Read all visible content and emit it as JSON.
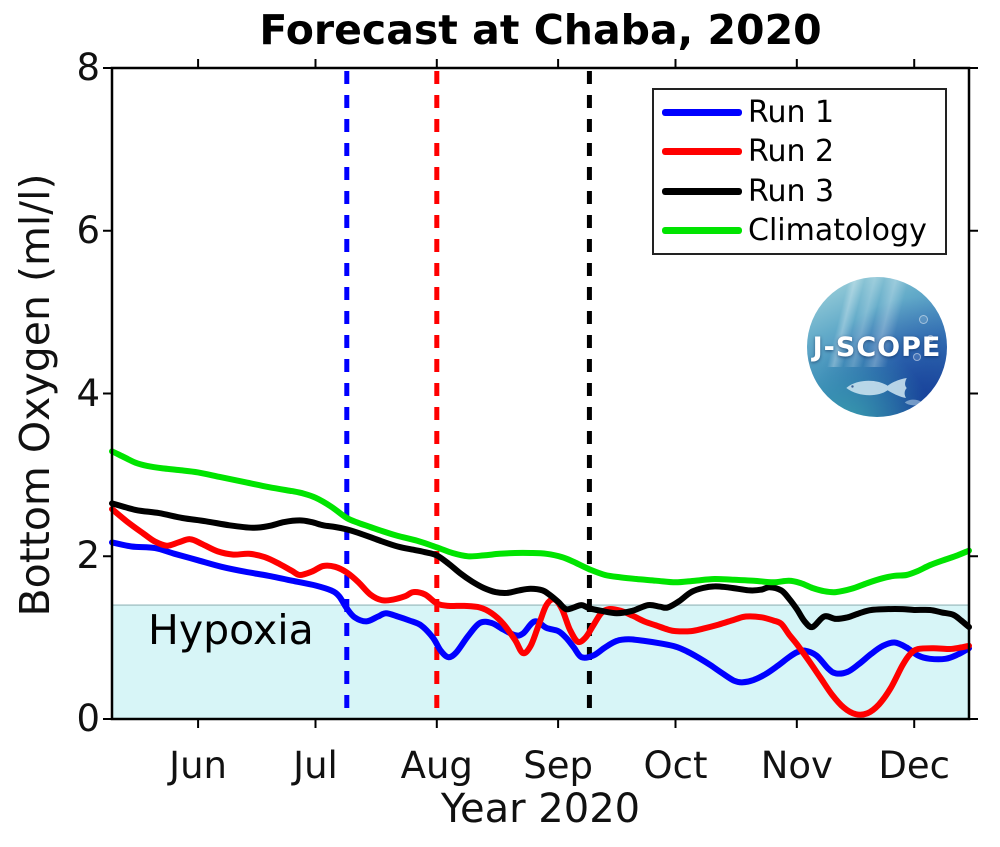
{
  "title": "Forecast at Chaba, 2020",
  "axes": {
    "xlabel": "Year 2020",
    "ylabel": "Bottom Oxygen (ml/l)"
  },
  "legend": {
    "items": [
      {
        "label": "Run 1",
        "color": "#0000ff"
      },
      {
        "label": "Run 2",
        "color": "#ff0000"
      },
      {
        "label": "Run 3",
        "color": "#000000"
      },
      {
        "label": "Climatology",
        "color": "#00e400"
      }
    ]
  },
  "hypoxia_label": "Hypoxia",
  "logo": {
    "text": "J-SCOPE"
  },
  "chart_data": {
    "type": "line",
    "title": "Forecast at Chaba, 2020",
    "xlabel": "Year 2020",
    "ylabel": "Bottom Oxygen (ml/l)",
    "ylim": [
      0,
      8
    ],
    "y_ticks": [
      0,
      2,
      4,
      6,
      8
    ],
    "grid": false,
    "legend_position": "top-right-inside",
    "x_unit": "days since 2020-05-01",
    "x_range": [
      9,
      228
    ],
    "x_ticks": [
      {
        "label": "Jun",
        "day": 31
      },
      {
        "label": "Jul",
        "day": 61
      },
      {
        "label": "Aug",
        "day": 92
      },
      {
        "label": "Sep",
        "day": 123
      },
      {
        "label": "Oct",
        "day": 153
      },
      {
        "label": "Nov",
        "day": 184
      },
      {
        "label": "Dec",
        "day": 214
      }
    ],
    "hypoxia": {
      "label": "Hypoxia",
      "threshold_ml_l": 1.4,
      "fill": "#d7f5f7",
      "edge_color": "#a9c6c9"
    },
    "vlines": [
      {
        "date": "Jul 9",
        "day": 69,
        "color": "#0000ff",
        "style": "dashed"
      },
      {
        "date": "Aug 1",
        "day": 92,
        "color": "#ff0000",
        "style": "dashed"
      },
      {
        "date": "Sep 8",
        "day": 131,
        "color": "#000000",
        "style": "dashed"
      }
    ],
    "series": [
      {
        "name": "Run 1",
        "color": "#0000ff",
        "points": [
          [
            9,
            2.17
          ],
          [
            14,
            2.12
          ],
          [
            20,
            2.1
          ],
          [
            25,
            2.03
          ],
          [
            31,
            1.95
          ],
          [
            37,
            1.87
          ],
          [
            43,
            1.81
          ],
          [
            49,
            1.76
          ],
          [
            55,
            1.7
          ],
          [
            61,
            1.64
          ],
          [
            65,
            1.58
          ],
          [
            67,
            1.51
          ],
          [
            69,
            1.36
          ],
          [
            71,
            1.25
          ],
          [
            74,
            1.2
          ],
          [
            77,
            1.26
          ],
          [
            79,
            1.3
          ],
          [
            82,
            1.26
          ],
          [
            85,
            1.21
          ],
          [
            88,
            1.15
          ],
          [
            91,
            1.0
          ],
          [
            93,
            0.84
          ],
          [
            95,
            0.76
          ],
          [
            97,
            0.82
          ],
          [
            100,
            1.02
          ],
          [
            103,
            1.18
          ],
          [
            106,
            1.18
          ],
          [
            109,
            1.1
          ],
          [
            112,
            1.03
          ],
          [
            114,
            1.05
          ],
          [
            117,
            1.2
          ],
          [
            120,
            1.12
          ],
          [
            123,
            1.08
          ],
          [
            125,
            1.0
          ],
          [
            127,
            0.88
          ],
          [
            129,
            0.76
          ],
          [
            132,
            0.78
          ],
          [
            135,
            0.88
          ],
          [
            138,
            0.96
          ],
          [
            141,
            0.98
          ],
          [
            145,
            0.96
          ],
          [
            149,
            0.93
          ],
          [
            153,
            0.89
          ],
          [
            156,
            0.83
          ],
          [
            159,
            0.75
          ],
          [
            162,
            0.66
          ],
          [
            165,
            0.56
          ],
          [
            168,
            0.47
          ],
          [
            170,
            0.45
          ],
          [
            173,
            0.48
          ],
          [
            176,
            0.55
          ],
          [
            179,
            0.65
          ],
          [
            182,
            0.76
          ],
          [
            184,
            0.82
          ],
          [
            186,
            0.84
          ],
          [
            189,
            0.78
          ],
          [
            192,
            0.62
          ],
          [
            194,
            0.56
          ],
          [
            197,
            0.58
          ],
          [
            200,
            0.68
          ],
          [
            203,
            0.8
          ],
          [
            206,
            0.9
          ],
          [
            209,
            0.94
          ],
          [
            212,
            0.88
          ],
          [
            215,
            0.78
          ],
          [
            218,
            0.74
          ],
          [
            222,
            0.74
          ],
          [
            225,
            0.79
          ],
          [
            228,
            0.87
          ]
        ]
      },
      {
        "name": "Run 2",
        "color": "#ff0000",
        "points": [
          [
            9,
            2.58
          ],
          [
            13,
            2.42
          ],
          [
            17,
            2.28
          ],
          [
            20,
            2.18
          ],
          [
            23,
            2.13
          ],
          [
            26,
            2.17
          ],
          [
            29,
            2.21
          ],
          [
            32,
            2.15
          ],
          [
            36,
            2.06
          ],
          [
            40,
            2.02
          ],
          [
            44,
            2.03
          ],
          [
            48,
            1.99
          ],
          [
            52,
            1.9
          ],
          [
            55,
            1.82
          ],
          [
            57,
            1.77
          ],
          [
            60,
            1.81
          ],
          [
            63,
            1.88
          ],
          [
            66,
            1.87
          ],
          [
            69,
            1.8
          ],
          [
            72,
            1.68
          ],
          [
            75,
            1.53
          ],
          [
            78,
            1.46
          ],
          [
            81,
            1.47
          ],
          [
            84,
            1.51
          ],
          [
            86,
            1.56
          ],
          [
            89,
            1.53
          ],
          [
            92,
            1.42
          ],
          [
            95,
            1.39
          ],
          [
            99,
            1.39
          ],
          [
            103,
            1.37
          ],
          [
            106,
            1.3
          ],
          [
            109,
            1.17
          ],
          [
            112,
            0.97
          ],
          [
            114,
            0.81
          ],
          [
            116,
            0.9
          ],
          [
            118,
            1.15
          ],
          [
            120,
            1.4
          ],
          [
            122,
            1.47
          ],
          [
            124,
            1.35
          ],
          [
            126,
            1.1
          ],
          [
            128,
            0.95
          ],
          [
            130,
            1.0
          ],
          [
            132,
            1.15
          ],
          [
            134,
            1.3
          ],
          [
            136,
            1.35
          ],
          [
            139,
            1.33
          ],
          [
            142,
            1.27
          ],
          [
            145,
            1.2
          ],
          [
            148,
            1.15
          ],
          [
            151,
            1.1
          ],
          [
            153,
            1.08
          ],
          [
            157,
            1.08
          ],
          [
            160,
            1.11
          ],
          [
            164,
            1.16
          ],
          [
            168,
            1.22
          ],
          [
            171,
            1.26
          ],
          [
            175,
            1.25
          ],
          [
            178,
            1.21
          ],
          [
            180,
            1.17
          ],
          [
            182,
            1.04
          ],
          [
            184,
            0.92
          ],
          [
            187,
            0.72
          ],
          [
            190,
            0.51
          ],
          [
            193,
            0.3
          ],
          [
            196,
            0.14
          ],
          [
            199,
            0.06
          ],
          [
            202,
            0.07
          ],
          [
            205,
            0.18
          ],
          [
            208,
            0.38
          ],
          [
            211,
            0.66
          ],
          [
            213,
            0.8
          ],
          [
            215,
            0.86
          ],
          [
            219,
            0.87
          ],
          [
            223,
            0.86
          ],
          [
            226,
            0.88
          ],
          [
            228,
            0.9
          ]
        ]
      },
      {
        "name": "Run 3",
        "color": "#000000",
        "points": [
          [
            9,
            2.65
          ],
          [
            15,
            2.57
          ],
          [
            21,
            2.53
          ],
          [
            27,
            2.47
          ],
          [
            33,
            2.43
          ],
          [
            39,
            2.38
          ],
          [
            45,
            2.35
          ],
          [
            49,
            2.37
          ],
          [
            53,
            2.42
          ],
          [
            57,
            2.44
          ],
          [
            60,
            2.42
          ],
          [
            63,
            2.38
          ],
          [
            66,
            2.36
          ],
          [
            69,
            2.33
          ],
          [
            73,
            2.27
          ],
          [
            77,
            2.2
          ],
          [
            82,
            2.12
          ],
          [
            86,
            2.08
          ],
          [
            89,
            2.05
          ],
          [
            92,
            2.01
          ],
          [
            95,
            1.91
          ],
          [
            98,
            1.79
          ],
          [
            101,
            1.69
          ],
          [
            104,
            1.61
          ],
          [
            107,
            1.56
          ],
          [
            110,
            1.55
          ],
          [
            113,
            1.58
          ],
          [
            116,
            1.6
          ],
          [
            119,
            1.58
          ],
          [
            121,
            1.52
          ],
          [
            123,
            1.44
          ],
          [
            125,
            1.35
          ],
          [
            127,
            1.37
          ],
          [
            129,
            1.4
          ],
          [
            131,
            1.36
          ],
          [
            134,
            1.33
          ],
          [
            138,
            1.3
          ],
          [
            142,
            1.33
          ],
          [
            146,
            1.4
          ],
          [
            149,
            1.38
          ],
          [
            151,
            1.37
          ],
          [
            154,
            1.45
          ],
          [
            157,
            1.56
          ],
          [
            160,
            1.61
          ],
          [
            163,
            1.63
          ],
          [
            166,
            1.62
          ],
          [
            169,
            1.6
          ],
          [
            172,
            1.58
          ],
          [
            175,
            1.59
          ],
          [
            177,
            1.62
          ],
          [
            180,
            1.58
          ],
          [
            182,
            1.48
          ],
          [
            184,
            1.35
          ],
          [
            186,
            1.2
          ],
          [
            188,
            1.13
          ],
          [
            191,
            1.26
          ],
          [
            194,
            1.23
          ],
          [
            197,
            1.25
          ],
          [
            200,
            1.3
          ],
          [
            203,
            1.34
          ],
          [
            207,
            1.35
          ],
          [
            211,
            1.35
          ],
          [
            214,
            1.34
          ],
          [
            218,
            1.34
          ],
          [
            221,
            1.31
          ],
          [
            224,
            1.28
          ],
          [
            226,
            1.21
          ],
          [
            228,
            1.13
          ]
        ]
      },
      {
        "name": "Climatology",
        "color": "#00e400",
        "points": [
          [
            9,
            3.29
          ],
          [
            12,
            3.22
          ],
          [
            15,
            3.15
          ],
          [
            18,
            3.11
          ],
          [
            22,
            3.08
          ],
          [
            26,
            3.06
          ],
          [
            31,
            3.03
          ],
          [
            37,
            2.97
          ],
          [
            43,
            2.91
          ],
          [
            49,
            2.85
          ],
          [
            55,
            2.8
          ],
          [
            58,
            2.77
          ],
          [
            61,
            2.72
          ],
          [
            65,
            2.61
          ],
          [
            69,
            2.47
          ],
          [
            72,
            2.41
          ],
          [
            75,
            2.36
          ],
          [
            78,
            2.31
          ],
          [
            82,
            2.25
          ],
          [
            87,
            2.19
          ],
          [
            92,
            2.11
          ],
          [
            96,
            2.04
          ],
          [
            100,
            2.0
          ],
          [
            104,
            2.01
          ],
          [
            108,
            2.03
          ],
          [
            112,
            2.04
          ],
          [
            116,
            2.04
          ],
          [
            120,
            2.03
          ],
          [
            124,
            1.99
          ],
          [
            127,
            1.93
          ],
          [
            131,
            1.84
          ],
          [
            135,
            1.77
          ],
          [
            139,
            1.74
          ],
          [
            143,
            1.72
          ],
          [
            148,
            1.7
          ],
          [
            153,
            1.68
          ],
          [
            158,
            1.7
          ],
          [
            163,
            1.72
          ],
          [
            168,
            1.71
          ],
          [
            173,
            1.7
          ],
          [
            178,
            1.68
          ],
          [
            182,
            1.7
          ],
          [
            185,
            1.67
          ],
          [
            188,
            1.61
          ],
          [
            191,
            1.57
          ],
          [
            194,
            1.56
          ],
          [
            198,
            1.6
          ],
          [
            202,
            1.67
          ],
          [
            206,
            1.73
          ],
          [
            209,
            1.76
          ],
          [
            212,
            1.77
          ],
          [
            215,
            1.82
          ],
          [
            218,
            1.89
          ],
          [
            222,
            1.96
          ],
          [
            225,
            2.01
          ],
          [
            228,
            2.07
          ]
        ]
      }
    ]
  }
}
